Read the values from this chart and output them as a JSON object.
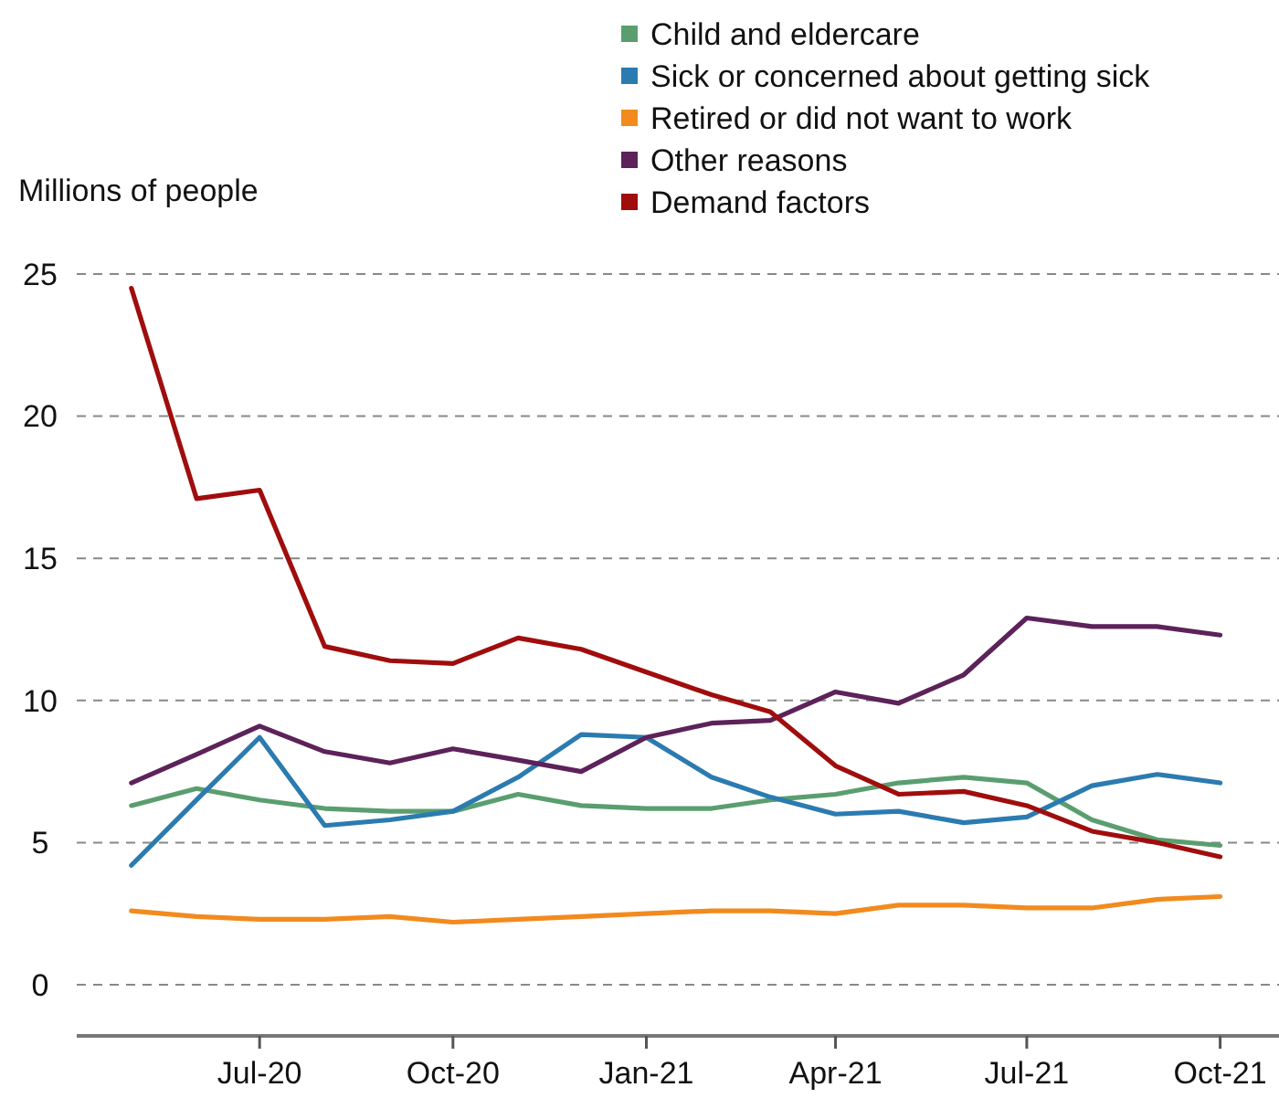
{
  "chart_data": {
    "type": "line",
    "ylabel": "Millions of people",
    "x": [
      "2020-05",
      "2020-06",
      "2020-07",
      "2020-08",
      "2020-09",
      "2020-10",
      "2020-11",
      "2020-12",
      "2021-01",
      "2021-02",
      "2021-03",
      "2021-04",
      "2021-05",
      "2021-06",
      "2021-07",
      "2021-08",
      "2021-09",
      "2021-10"
    ],
    "series": [
      {
        "name": "Child and eldercare",
        "color": "#5a9e6f",
        "values": [
          6.3,
          6.9,
          6.5,
          6.2,
          6.1,
          6.1,
          6.7,
          6.3,
          6.2,
          6.2,
          6.5,
          6.7,
          7.1,
          7.3,
          7.1,
          5.8,
          5.1,
          4.9
        ]
      },
      {
        "name": "Sick or concerned about getting sick",
        "color": "#2b7bb0",
        "values": [
          4.2,
          6.5,
          8.7,
          5.6,
          5.8,
          6.1,
          7.3,
          8.8,
          8.7,
          7.3,
          6.6,
          6.0,
          6.1,
          5.7,
          5.9,
          7.0,
          7.4,
          7.1
        ]
      },
      {
        "name": "Retired or did not want to work",
        "color": "#f28a1e",
        "values": [
          2.6,
          2.4,
          2.3,
          2.3,
          2.4,
          2.2,
          2.3,
          2.4,
          2.5,
          2.6,
          2.6,
          2.5,
          2.8,
          2.8,
          2.7,
          2.7,
          3.0,
          3.1
        ]
      },
      {
        "name": "Other reasons",
        "color": "#5c2259",
        "values": [
          7.1,
          8.1,
          9.1,
          8.2,
          7.8,
          8.3,
          7.9,
          7.5,
          8.7,
          9.2,
          9.3,
          10.3,
          9.9,
          10.9,
          12.9,
          12.6,
          12.6,
          12.3
        ]
      },
      {
        "name": "Demand factors",
        "color": "#a00d0d",
        "values": [
          24.5,
          17.1,
          17.4,
          11.9,
          11.4,
          11.3,
          12.2,
          11.8,
          11.0,
          10.2,
          9.6,
          7.7,
          6.7,
          6.8,
          6.3,
          5.4,
          5.0,
          4.5
        ]
      }
    ],
    "xlim": [
      "2020-04-05",
      "2021-10-29"
    ],
    "xticks": [
      {
        "value": "2020-07",
        "label": "Jul-20"
      },
      {
        "value": "2020-10",
        "label": "Oct-20"
      },
      {
        "value": "2021-01",
        "label": "Jan-21"
      },
      {
        "value": "2021-04",
        "label": "Apr-21"
      },
      {
        "value": "2021-07",
        "label": "Jul-21"
      },
      {
        "value": "2021-10",
        "label": "Oct-21"
      }
    ],
    "ylim": [
      -1.8,
      25
    ],
    "yticks": [
      0,
      5,
      10,
      15,
      20,
      25
    ],
    "grid": "y",
    "legend": "top right",
    "marker": "none",
    "line_style": "solid"
  }
}
